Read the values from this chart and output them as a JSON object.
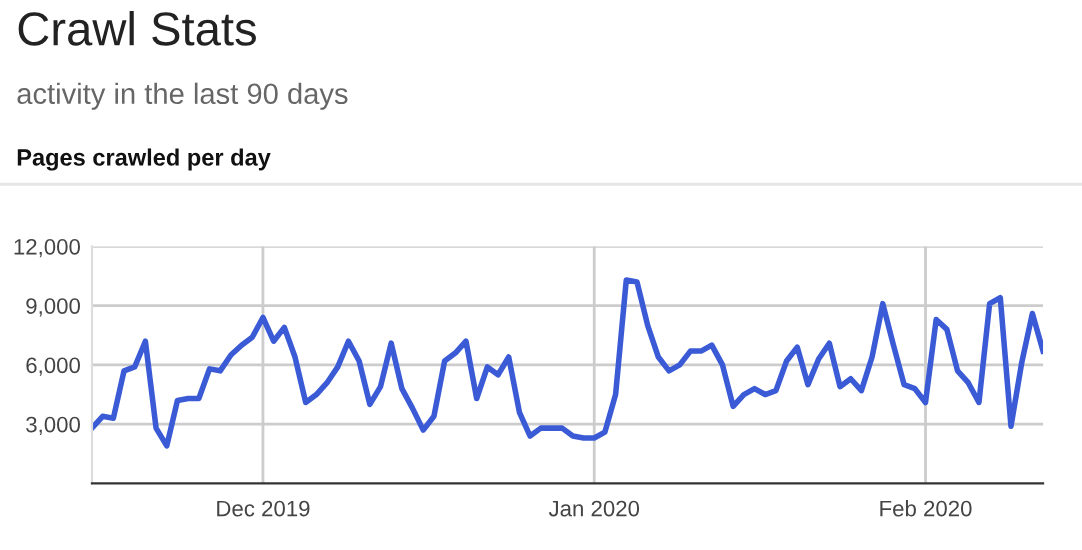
{
  "chart_data": {
    "type": "line",
    "title": "Crawl Stats",
    "subtitle": "activity in the last 90 days",
    "annotations": [
      "Pages crawled per day"
    ],
    "x": [
      "2019-11-15",
      "2019-11-16",
      "2019-11-17",
      "2019-11-18",
      "2019-11-19",
      "2019-11-20",
      "2019-11-21",
      "2019-11-22",
      "2019-11-23",
      "2019-11-24",
      "2019-11-25",
      "2019-11-26",
      "2019-11-27",
      "2019-11-28",
      "2019-11-29",
      "2019-11-30",
      "2019-12-01",
      "2019-12-02",
      "2019-12-03",
      "2019-12-04",
      "2019-12-05",
      "2019-12-06",
      "2019-12-07",
      "2019-12-08",
      "2019-12-09",
      "2019-12-10",
      "2019-12-11",
      "2019-12-12",
      "2019-12-13",
      "2019-12-14",
      "2019-12-15",
      "2019-12-16",
      "2019-12-17",
      "2019-12-18",
      "2019-12-19",
      "2019-12-20",
      "2019-12-21",
      "2019-12-22",
      "2019-12-23",
      "2019-12-24",
      "2019-12-25",
      "2019-12-26",
      "2019-12-27",
      "2019-12-28",
      "2019-12-29",
      "2019-12-30",
      "2019-12-31",
      "2020-01-01",
      "2020-01-02",
      "2020-01-03",
      "2020-01-04",
      "2020-01-05",
      "2020-01-06",
      "2020-01-07",
      "2020-01-08",
      "2020-01-09",
      "2020-01-10",
      "2020-01-11",
      "2020-01-12",
      "2020-01-13",
      "2020-01-14",
      "2020-01-15",
      "2020-01-16",
      "2020-01-17",
      "2020-01-18",
      "2020-01-19",
      "2020-01-20",
      "2020-01-21",
      "2020-01-22",
      "2020-01-23",
      "2020-01-24",
      "2020-01-25",
      "2020-01-26",
      "2020-01-27",
      "2020-01-28",
      "2020-01-29",
      "2020-01-30",
      "2020-01-31",
      "2020-02-01",
      "2020-02-02",
      "2020-02-03",
      "2020-02-04",
      "2020-02-05",
      "2020-02-06",
      "2020-02-07",
      "2020-02-08",
      "2020-02-09",
      "2020-02-10",
      "2020-02-11",
      "2020-02-12"
    ],
    "series": [
      {
        "color": "#3b5bd6",
        "values": [
          2800,
          3400,
          3300,
          5700,
          5900,
          7200,
          2800,
          1900,
          4200,
          4300,
          4300,
          5800,
          5700,
          6500,
          7000,
          7400,
          8400,
          7200,
          7900,
          6400,
          4100,
          4500,
          5100,
          5900,
          7200,
          6200,
          4000,
          4900,
          7100,
          4800,
          3800,
          2700,
          3400,
          6200,
          6600,
          7200,
          4300,
          5900,
          5500,
          6400,
          3600,
          2400,
          2800,
          2800,
          2800,
          2400,
          2300,
          2300,
          2600,
          4500,
          10300,
          10200,
          8000,
          6400,
          5700,
          6000,
          6700,
          6700,
          7000,
          6000,
          3900,
          4500,
          4800,
          4500,
          4700,
          6200,
          6900,
          5000,
          6300,
          7100,
          4900,
          5300,
          4700,
          6400,
          9100,
          7000,
          5000,
          4800,
          4100,
          8300,
          7800,
          5700,
          5100,
          4100,
          9100,
          9400,
          2900,
          6100,
          8600,
          6700
        ]
      }
    ],
    "xlim": [
      "2019-11-15",
      "2020-02-12"
    ],
    "xticks": [
      {
        "value": "2019-12-01",
        "label": "Dec 2019"
      },
      {
        "value": "2020-01-01",
        "label": "Jan 2020"
      },
      {
        "value": "2020-02-01",
        "label": "Feb 2020"
      }
    ],
    "ylim": [
      0,
      12000
    ],
    "yticks": [
      {
        "value": 3000,
        "label": "3,000"
      },
      {
        "value": 6000,
        "label": "6,000"
      },
      {
        "value": 9000,
        "label": "9,000"
      },
      {
        "value": 12000,
        "label": "12,000"
      }
    ],
    "grid": true,
    "marker": "none",
    "line_style": "solid"
  }
}
